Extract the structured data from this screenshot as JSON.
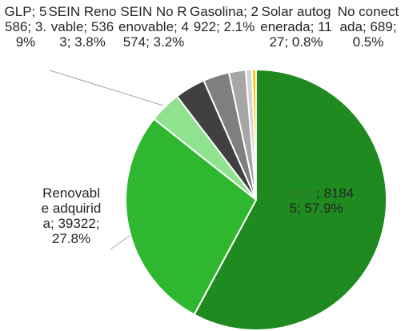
{
  "chart_data": {
    "type": "pie",
    "separator": "; ",
    "categories": [
      "Diesel",
      "Renovable adquirida",
      "GLP",
      "SEIN Renovable",
      "SEIN No Renovable",
      "Gasolina",
      "Solar autogenerada",
      "No conectada"
    ],
    "values": [
      81845,
      39322,
      5586,
      5363,
      4574,
      2922,
      1127,
      689
    ],
    "shares": [
      57.9,
      27.8,
      3.9,
      3.8,
      3.2,
      2.1,
      0.8,
      0.5
    ],
    "share_labels": [
      "57.9%",
      "27.8%",
      "3.9%",
      "3.8%",
      "3.2%",
      "2.1%",
      "0.8%",
      "0.5%"
    ],
    "colors": [
      "#1f8a1f",
      "#2fb82f",
      "#8fe38f",
      "#404040",
      "#7f7f7f",
      "#a6a6a6",
      "#d4d4d4",
      "#ffc000"
    ]
  }
}
